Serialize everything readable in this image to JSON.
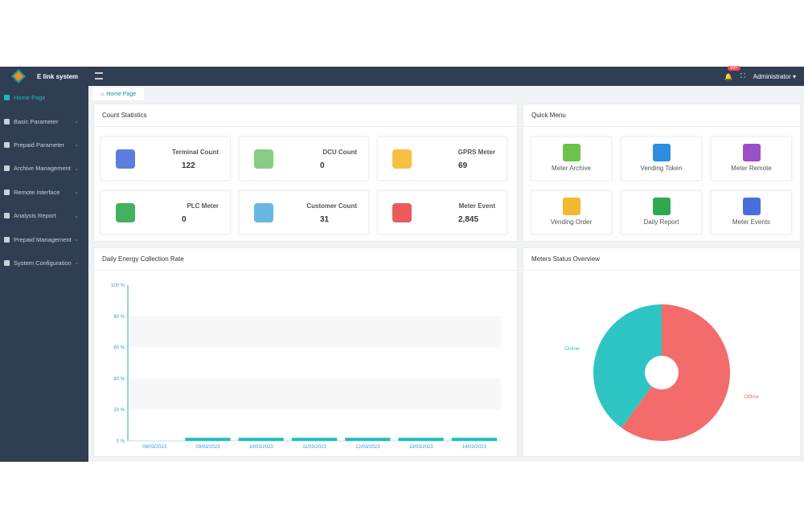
{
  "header": {
    "brand": "E link system",
    "notif_badge": "99+",
    "user": "Administrator"
  },
  "sidebar": {
    "items": [
      {
        "label": "Home Page",
        "active": true
      },
      {
        "label": "Basic Parameter"
      },
      {
        "label": "Prepaid Parameter"
      },
      {
        "label": "Archive Management"
      },
      {
        "label": "Remote Interface"
      },
      {
        "label": "Analysis Report"
      },
      {
        "label": "Prepaid Management"
      },
      {
        "label": "System Configuration"
      }
    ]
  },
  "tabs": [
    {
      "label": "Home Page"
    }
  ],
  "count_statistics": {
    "title": "Count Statistics",
    "items": [
      {
        "label": "Terminal Count",
        "value": "122",
        "icon": "phone-signal-icon",
        "color": "#4a6fdc"
      },
      {
        "label": "DCU Count",
        "value": "0",
        "icon": "dcu-icon",
        "color": "#7cc576"
      },
      {
        "label": "GPRS Meter",
        "value": "69",
        "icon": "gprs-meter-icon",
        "color": "#f5b82e"
      },
      {
        "label": "PLC Meter",
        "value": "0",
        "icon": "plc-meter-icon",
        "color": "#2fa84f"
      },
      {
        "label": "Customer Count",
        "value": "31",
        "icon": "users-icon",
        "color": "#5aaee0"
      },
      {
        "label": "Meter Event",
        "value": "2,845",
        "icon": "alarm-icon",
        "color": "#e84a4a"
      }
    ]
  },
  "quick_menu": {
    "title": "Quick Menu",
    "items": [
      {
        "label": "Meter Archive",
        "icon": "meter-archive-icon",
        "color": "#6cc24a"
      },
      {
        "label": "Vending Token",
        "icon": "key-user-icon",
        "color": "#2e8de0"
      },
      {
        "label": "Meter Remote",
        "icon": "satellite-icon",
        "color": "#9b4fc7"
      },
      {
        "label": "Vending Order",
        "icon": "handshake-icon",
        "color": "#f5b82e"
      },
      {
        "label": "Daily Report",
        "icon": "bar-chart-icon",
        "color": "#2fa84f"
      },
      {
        "label": "Meter Events",
        "icon": "monitor-chart-icon",
        "color": "#4a6fdc"
      }
    ]
  },
  "chart_data": [
    {
      "type": "bar",
      "title": "Daily Energy Collection Rate",
      "categories": [
        "08/03/2023",
        "09/03/2023",
        "10/03/2023",
        "11/03/2023",
        "12/03/2023",
        "13/03/2023",
        "14/03/2023"
      ],
      "values": [
        0,
        1,
        1,
        1,
        1,
        1,
        1
      ],
      "yticks": [
        "0 %",
        "20 %",
        "40 %",
        "60 %",
        "80 %",
        "100 %"
      ],
      "ylim": [
        0,
        100
      ],
      "color": "#1fbfbf"
    },
    {
      "type": "pie",
      "title": "Meters Status Overview",
      "slices": [
        {
          "name": "Offline",
          "value": 60,
          "color": "#f46b6b"
        },
        {
          "name": "Online",
          "value": 40,
          "color": "#2ec4c4"
        }
      ],
      "donut": true
    }
  ]
}
